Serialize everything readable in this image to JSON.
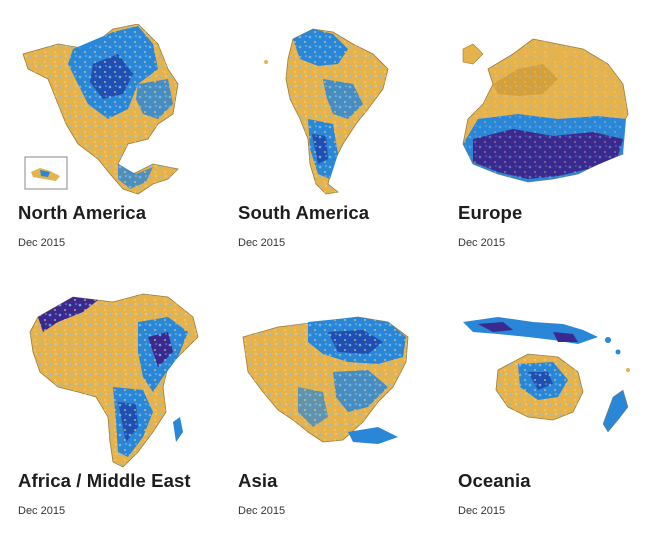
{
  "regions": [
    {
      "title": "North America",
      "date": "Dec 2015"
    },
    {
      "title": "South America",
      "date": "Dec 2015"
    },
    {
      "title": "Europe",
      "date": "Dec 2015"
    },
    {
      "title": "Africa / Middle East",
      "date": "Dec 2015"
    },
    {
      "title": "Asia",
      "date": "Dec 2015"
    },
    {
      "title": "Oceania",
      "date": "Dec 2015"
    }
  ],
  "colors": {
    "dry": "#e6b24c",
    "dry_dark": "#c9922f",
    "wet": "#2a86d6",
    "wet_light": "#7cc3ee",
    "very_wet": "#3a2a8f",
    "border": "#6b6b6b"
  }
}
